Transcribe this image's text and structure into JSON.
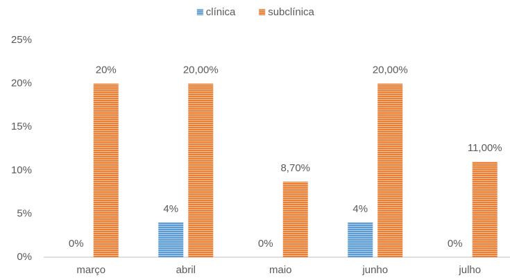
{
  "chart_data": {
    "type": "bar",
    "categories": [
      "março",
      "abril",
      "maio",
      "junho",
      "julho"
    ],
    "series": [
      {
        "name": "clínica",
        "color": "#5b9bd5",
        "values": [
          0,
          4,
          0,
          4,
          0
        ],
        "value_labels": [
          "0%",
          "4%",
          "0%",
          "4%",
          "0%"
        ]
      },
      {
        "name": "subclínica",
        "color": "#ed7d31",
        "values": [
          20,
          20,
          8.7,
          20,
          11
        ],
        "value_labels": [
          "20%",
          "20,00%",
          "8,70%",
          "20,00%",
          "11,00%"
        ]
      }
    ],
    "ylim": [
      0,
      25
    ],
    "yticks": [
      {
        "value": 0,
        "label": "0%"
      },
      {
        "value": 5,
        "label": "5%"
      },
      {
        "value": 10,
        "label": "10%"
      },
      {
        "value": 15,
        "label": "15%"
      },
      {
        "value": 20,
        "label": "20%"
      },
      {
        "value": 25,
        "label": "25%"
      }
    ],
    "grid": false,
    "legend": "top"
  }
}
